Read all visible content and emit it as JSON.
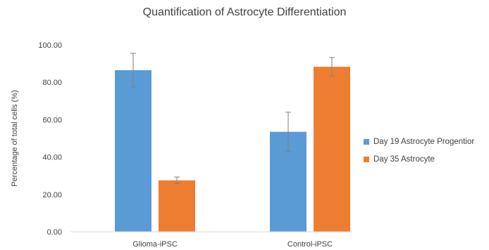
{
  "colors": {
    "series1": "#5b9bd5",
    "series2": "#ed7d31",
    "axis_text": "#404040",
    "baseline": "#d9d9d9",
    "error_bar": "#7f7f7f"
  },
  "chart_data": {
    "type": "bar",
    "title": "Quantification of Astrocyte Differentiation",
    "xlabel": "",
    "ylabel": "Percentage of total cells (%)",
    "ylim": [
      0,
      100
    ],
    "yticks": [
      "0.00",
      "20.00",
      "40.00",
      "60.00",
      "80.00",
      "100.00"
    ],
    "categories": [
      "Glioma-iPSC",
      "Control-iPSC"
    ],
    "grid": false,
    "legend_position": "right",
    "series": [
      {
        "name": "Day 19 Astrocyte Progentior",
        "values": [
          86.5,
          53.5
        ],
        "error": [
          9,
          10.5
        ]
      },
      {
        "name": "Day 35 Astrocyte",
        "values": [
          27.5,
          88.3
        ],
        "error": [
          1.8,
          5
        ]
      }
    ]
  }
}
